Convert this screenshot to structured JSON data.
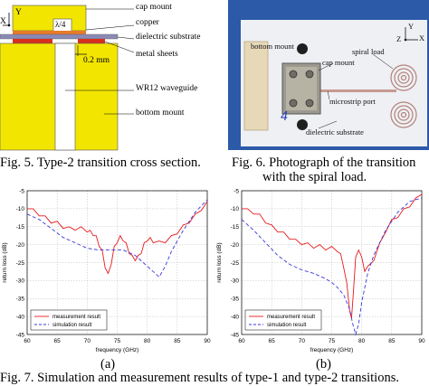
{
  "fig5": {
    "caption": "Fig. 5.  Type-2 transition cross section.",
    "axis_x": "X",
    "axis_y": "Y",
    "lambda": "λ/4",
    "dim": "0.2 mm",
    "labels": {
      "cap_mount": "cap mount",
      "copper": "copper",
      "dielectric": "dielectric substrate",
      "metal_sheets": "metal sheets",
      "waveguide": "WR12 waveguide",
      "bottom_mount": "bottom mount"
    }
  },
  "fig6": {
    "caption_line1": "Fig. 6.  Photograph of the transition",
    "caption_line2": "with the spiral load.",
    "labels": {
      "bottom_mount": "bottom mount",
      "cap_mount": "cap mount",
      "spiral_load": "spiral load",
      "microstrip_port": "microstrip port",
      "dielectric": "dielectric substrate",
      "axis_z": "Z",
      "axis_y": "Y",
      "axis_x": "X",
      "handwritten": "4"
    }
  },
  "fig7": {
    "caption": "Fig. 7.  Simulation and measurement results of type-1 and type-2 transitions.",
    "sublabel_a": "(a)",
    "sublabel_b": "(b)"
  },
  "chart_data": [
    {
      "type": "line",
      "panel": "(a)",
      "xlabel": "frequency (GHz)",
      "ylabel": "return loss (dB)",
      "xlim": [
        60,
        90
      ],
      "ylim": [
        -45,
        -5
      ],
      "xticks": [
        60,
        65,
        70,
        75,
        80,
        85,
        90
      ],
      "yticks": [
        -5,
        -10,
        -15,
        -20,
        -25,
        -30,
        -35,
        -40,
        -45
      ],
      "grid": true,
      "legend": "bottom-left",
      "colors": {
        "measurement": "#e8191c",
        "simulation": "#3a3ad8"
      },
      "series": [
        {
          "name": "measurement result",
          "style": "solid",
          "x": [
            60,
            61,
            62,
            63,
            64,
            65,
            66,
            67,
            68,
            69,
            70,
            70.5,
            71,
            71.5,
            72,
            72.5,
            73,
            73.5,
            74,
            74.5,
            75,
            75.5,
            76,
            76.5,
            77,
            77.5,
            78,
            78.5,
            79,
            79.5,
            80,
            80.5,
            81,
            82,
            83,
            84,
            85,
            86,
            87,
            88,
            89,
            90
          ],
          "y": [
            -10,
            -10.5,
            -11.5,
            -12.5,
            -13.5,
            -14,
            -15,
            -15.5,
            -15.5,
            -15.5,
            -16,
            -16.5,
            -17,
            -18,
            -20,
            -22,
            -26,
            -28.5,
            -25,
            -21,
            -19,
            -18,
            -18.5,
            -20,
            -22,
            -23.5,
            -24,
            -23.5,
            -22,
            -20,
            -18.5,
            -18.5,
            -19,
            -19.5,
            -19,
            -18,
            -16.5,
            -15,
            -13.5,
            -12,
            -10,
            -8
          ]
        },
        {
          "name": "simulation result",
          "style": "dashed",
          "x": [
            60,
            62,
            64,
            66,
            68,
            70,
            72,
            74,
            76,
            78,
            79,
            80,
            81,
            82,
            83,
            84,
            86,
            88,
            90
          ],
          "y": [
            -11.5,
            -13,
            -15.5,
            -18,
            -19.5,
            -21,
            -21.5,
            -21.5,
            -21.5,
            -23,
            -24.5,
            -26,
            -27.5,
            -29,
            -26,
            -22,
            -16,
            -11,
            -7.5
          ]
        }
      ]
    },
    {
      "type": "line",
      "panel": "(b)",
      "xlabel": "frequency (GHz)",
      "ylabel": "return loss (dB)",
      "xlim": [
        60,
        90
      ],
      "ylim": [
        -45,
        -5
      ],
      "xticks": [
        60,
        65,
        70,
        75,
        80,
        85,
        90
      ],
      "yticks": [
        -5,
        -10,
        -15,
        -20,
        -25,
        -30,
        -35,
        -40,
        -45
      ],
      "grid": true,
      "legend": "bottom-left",
      "colors": {
        "measurement": "#e8191c",
        "simulation": "#3a3ad8"
      },
      "series": [
        {
          "name": "measurement result",
          "style": "solid",
          "x": [
            60,
            61,
            62,
            63,
            64,
            65,
            66,
            67,
            68,
            69,
            70,
            71,
            72,
            73,
            74,
            75,
            76,
            76.5,
            77,
            77.5,
            78,
            78.3,
            78.6,
            79,
            79.5,
            80,
            80.5,
            81,
            82,
            83,
            84,
            85,
            86,
            87,
            88,
            89,
            90
          ],
          "y": [
            -10,
            -10.5,
            -11,
            -12,
            -13.5,
            -15,
            -16,
            -17,
            -18,
            -19,
            -19.5,
            -20,
            -20.5,
            -20.5,
            -21,
            -21,
            -21.5,
            -23,
            -26,
            -31,
            -38,
            -41,
            -33,
            -24,
            -21,
            -24,
            -27,
            -26.5,
            -24,
            -20,
            -16,
            -13.5,
            -12,
            -10.5,
            -9,
            -7.5,
            -6
          ]
        },
        {
          "name": "simulation result",
          "style": "dashed",
          "x": [
            60,
            62,
            64,
            66,
            68,
            70,
            72,
            74,
            75,
            76,
            77,
            78,
            78.5,
            79,
            79.5,
            80,
            81,
            82,
            84,
            86,
            88,
            90
          ],
          "y": [
            -13,
            -16,
            -19.5,
            -23,
            -25.5,
            -27,
            -28,
            -29.5,
            -30.5,
            -32,
            -34,
            -38,
            -42,
            -45,
            -42,
            -36,
            -28,
            -23,
            -16,
            -11,
            -8,
            -7
          ]
        }
      ]
    }
  ]
}
